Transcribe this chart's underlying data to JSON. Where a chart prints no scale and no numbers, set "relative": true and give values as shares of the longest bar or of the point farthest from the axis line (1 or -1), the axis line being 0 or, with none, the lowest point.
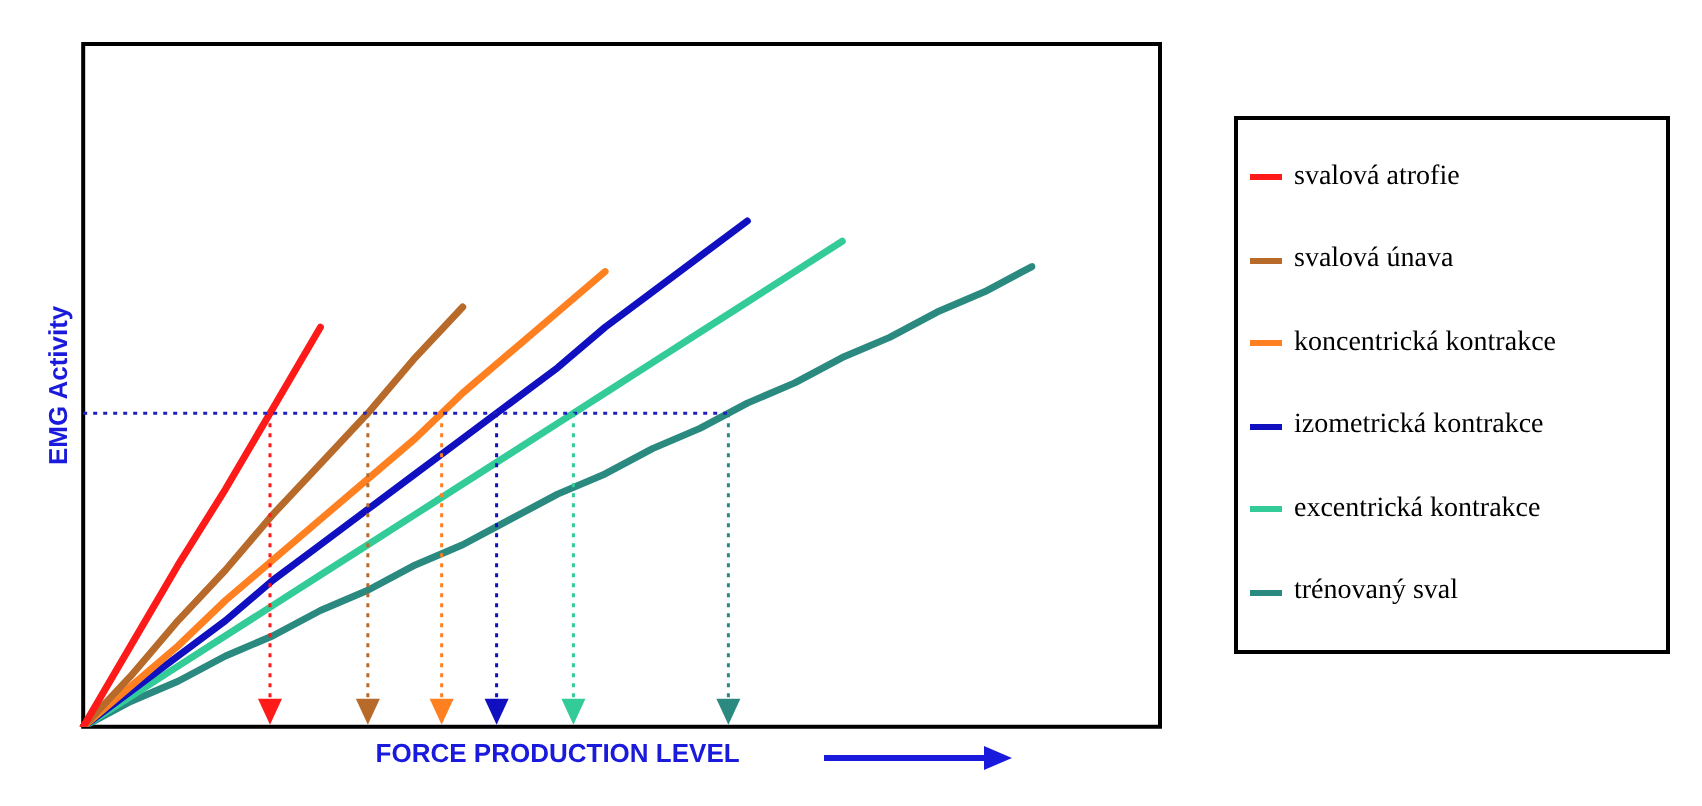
{
  "chart_data": {
    "type": "line",
    "relative": true,
    "xlabel": "FORCE PRODUCTION LEVEL",
    "ylabel": "EMG Activity",
    "legend": "right",
    "grid": false,
    "marker": "none",
    "line_style": "solid",
    "categories": [
      null,
      null,
      null,
      null,
      null,
      null,
      null,
      null,
      null,
      null,
      null,
      null,
      null,
      null,
      null,
      null,
      null,
      null,
      null,
      null,
      null
    ],
    "series": [
      {
        "name": "svalová atrofie",
        "color": "#ff1a1a",
        "values": [
          0,
          0.16,
          0.32,
          0.47,
          0.63,
          0.79,
          null,
          null,
          null,
          null,
          null,
          null,
          null,
          null,
          null,
          null,
          null,
          null,
          null,
          null,
          null
        ]
      },
      {
        "name": "svalová únava",
        "color": "#b86a2a",
        "values": [
          0,
          0.1,
          0.21,
          0.31,
          0.42,
          0.52,
          0.62,
          0.73,
          0.83,
          null,
          null,
          null,
          null,
          null,
          null,
          null,
          null,
          null,
          null,
          null,
          null
        ]
      },
      {
        "name": "koncentrická kontrakce",
        "color": "#ff8020",
        "values": [
          0,
          0.08,
          0.16,
          0.25,
          0.33,
          0.41,
          0.49,
          0.57,
          0.66,
          0.74,
          0.82,
          0.9,
          null,
          null,
          null,
          null,
          null,
          null,
          null,
          null,
          null
        ]
      },
      {
        "name": "izometrická kontrakce",
        "color": "#1010c0",
        "values": [
          0,
          0.07,
          0.14,
          0.21,
          0.29,
          0.36,
          0.43,
          0.5,
          0.57,
          0.64,
          0.71,
          0.79,
          0.86,
          0.93,
          1,
          null,
          null,
          null,
          null,
          null,
          null
        ]
      },
      {
        "name": "excentrická kontrakce",
        "color": "#33cc99",
        "values": [
          0,
          0.06,
          0.12,
          0.18,
          0.24,
          0.3,
          0.36,
          0.42,
          0.48,
          0.54,
          0.6,
          0.66,
          0.72,
          0.78,
          0.84,
          0.9,
          0.96,
          null,
          null,
          null,
          null
        ]
      },
      {
        "name": "trénovaný sval",
        "color": "#2a8a80",
        "values": [
          0,
          0.05,
          0.09,
          0.14,
          0.18,
          0.23,
          0.27,
          0.32,
          0.36,
          0.41,
          0.46,
          0.5,
          0.55,
          0.59,
          0.64,
          0.68,
          0.73,
          0.77,
          0.82,
          0.86,
          0.91
        ]
      }
    ],
    "ref_lines": [
      {
        "axis": "y",
        "value": 0.62,
        "color": "#2020c0",
        "line_style": "dotted"
      }
    ]
  }
}
